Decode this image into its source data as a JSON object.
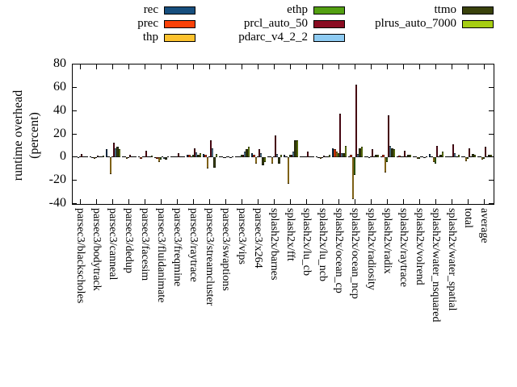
{
  "chart_data": {
    "type": "bar",
    "title": "",
    "ylabel": [
      "runtime overhead",
      "(percent)"
    ],
    "xlabel": "",
    "ylim": [
      -40,
      80
    ],
    "yticks": [
      80,
      60,
      40,
      20,
      0,
      -20,
      -40
    ],
    "grid": false,
    "legend_position": "top",
    "categories": [
      "parsec3/blackscholes",
      "parsec3/bodytrack",
      "parsec3/canneal",
      "parsec3/dedup",
      "parsec3/facesim",
      "parsec3/fluidanimate",
      "parsec3/freqmine",
      "parsec3/raytrace",
      "parsec3/streamcluster",
      "parsec3/swaptions",
      "parsec3/vips",
      "parsec3/x264",
      "splash2x/barnes",
      "splash2x/fft",
      "splash2x/lu_cb",
      "splash2x/lu_ncb",
      "splash2x/ocean_cp",
      "splash2x/ocean_ncp",
      "splash2x/radiosity",
      "splash2x/radix",
      "splash2x/raytrace",
      "splash2x/volrend",
      "splash2x/water_nsquared",
      "splash2x/water_spatial",
      "total",
      "average"
    ],
    "series": [
      {
        "name": "rec",
        "color": "#174f7e",
        "values": [
          0.3,
          0.3,
          7,
          0.3,
          0.5,
          -0.5,
          1,
          2,
          3,
          0.2,
          0.5,
          4,
          1,
          2,
          0.5,
          0.5,
          8,
          1,
          0.5,
          1,
          0.5,
          0.3,
          3,
          1,
          0.5,
          0.5
        ]
      },
      {
        "name": "prec",
        "color": "#fb4208",
        "values": [
          0.3,
          -0.5,
          1,
          0.3,
          -1,
          -1.5,
          0.5,
          2,
          2,
          0.2,
          1,
          2,
          1,
          1,
          0.5,
          -0.5,
          7,
          2,
          0.5,
          2,
          1.5,
          0.3,
          1,
          1,
          1,
          1
        ]
      },
      {
        "name": "thp",
        "color": "#fcc22e",
        "values": [
          -0.4,
          -1,
          -14,
          -1,
          0.5,
          -4,
          0.5,
          1,
          -9.5,
          -0.5,
          1,
          -5.5,
          -5.5,
          -23,
          0.5,
          -1,
          5,
          -36,
          -0.5,
          -13,
          0.5,
          -1.5,
          -4,
          0.5,
          -3,
          -2
        ]
      },
      {
        "name": "ethp",
        "color": "#53a012",
        "values": [
          0.3,
          -0.5,
          1,
          -0.5,
          0.5,
          -2,
          0.5,
          2,
          1,
          -0.5,
          2,
          1,
          1,
          2,
          0.5,
          -0.5,
          4,
          -15,
          1,
          -4,
          1,
          -1,
          -5,
          1,
          -1,
          -1
        ]
      },
      {
        "name": "prcl_auto_50",
        "color": "#8a0c22",
        "values": [
          2.8,
          1.5,
          13,
          2.5,
          6,
          0.5,
          3.5,
          8,
          15,
          0.5,
          2,
          7,
          19,
          2,
          5,
          1.5,
          38,
          63,
          7,
          36,
          6,
          0.5,
          10,
          11,
          8,
          9
        ]
      },
      {
        "name": "pdarc_v4_2_2",
        "color": "#8ecbf2",
        "values": [
          0.4,
          0.3,
          8,
          0.5,
          0.5,
          -1.5,
          0.5,
          4.5,
          8,
          0.3,
          5,
          4,
          3,
          5,
          1,
          0.5,
          4,
          3,
          1,
          10,
          1,
          0.5,
          1,
          4,
          1,
          1
        ]
      },
      {
        "name": "ttmo",
        "color": "#3a420c",
        "values": [
          0.4,
          0.5,
          9,
          0.5,
          1,
          -2,
          0.5,
          2,
          -9,
          -0.5,
          7,
          -7,
          -5,
          15,
          1,
          1,
          4,
          8,
          2,
          8,
          2,
          -0.5,
          2,
          1,
          3,
          2
        ]
      },
      {
        "name": "plrus_auto_7000",
        "color": "#a6ce13",
        "values": [
          0.5,
          1.5,
          7,
          1,
          1.5,
          1,
          1,
          4,
          3,
          0.3,
          9,
          -4,
          2,
          15,
          1,
          2,
          10,
          9,
          2,
          7,
          2,
          0.5,
          5,
          2,
          2,
          2
        ]
      }
    ],
    "legend_columns": [
      [
        "rec",
        "prec",
        "thp"
      ],
      [
        "ethp",
        "prcl_auto_50",
        "pdarc_v4_2_2"
      ],
      [
        "ttmo",
        "plrus_auto_7000"
      ]
    ]
  }
}
